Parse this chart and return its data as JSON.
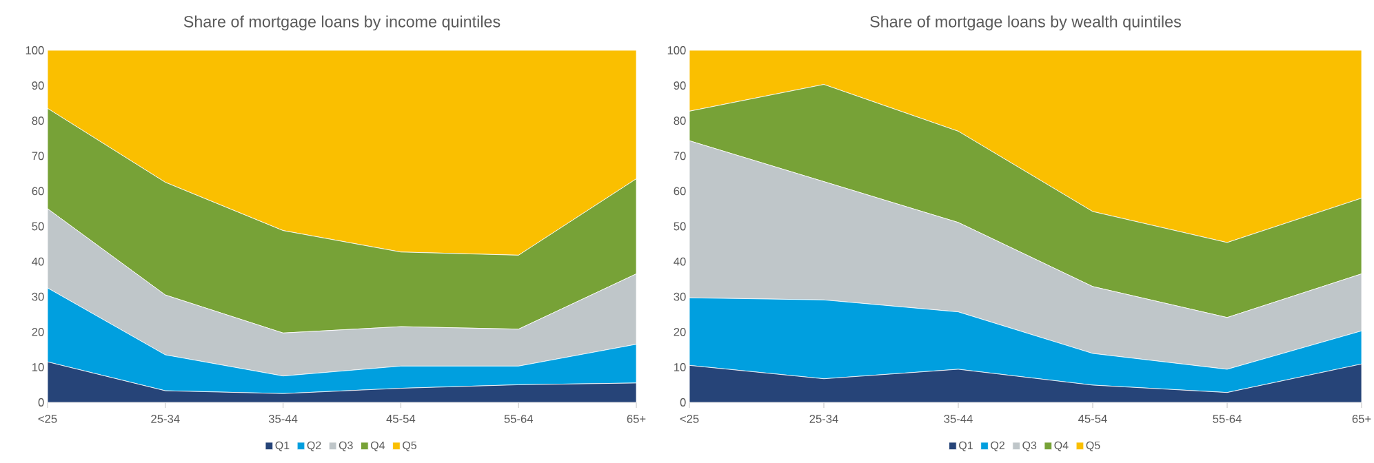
{
  "chart_data": [
    {
      "type": "area",
      "stacked": true,
      "title": "Share of mortgage loans by income quintiles",
      "categories": [
        "<25",
        "25-34",
        "35-44",
        "45-54",
        "55-64",
        "65+"
      ],
      "ylim": [
        0,
        100
      ],
      "yticks": [
        0,
        10,
        20,
        30,
        40,
        50,
        60,
        70,
        80,
        90,
        100
      ],
      "grid": false,
      "legend": "bottom",
      "series": [
        {
          "name": "Q1",
          "color": "#264478",
          "values": [
            11.5,
            3.3,
            2.5,
            4,
            5,
            5.5
          ]
        },
        {
          "name": "Q2",
          "color": "#009fdf",
          "values": [
            21,
            10.2,
            5,
            6.3,
            5.3,
            11
          ]
        },
        {
          "name": "Q3",
          "color": "#bfc6c9",
          "values": [
            22.5,
            17,
            12.2,
            11.2,
            10.5,
            20
          ]
        },
        {
          "name": "Q4",
          "color": "#77a237",
          "values": [
            28.5,
            32,
            29.1,
            21.2,
            21,
            27
          ]
        },
        {
          "name": "Q5",
          "color": "#fabf00",
          "values": [
            16.5,
            37.5,
            51.2,
            57.3,
            58.2,
            36.5
          ]
        }
      ]
    },
    {
      "type": "area",
      "stacked": true,
      "title": "Share of mortgage loans by wealth quintiles",
      "categories": [
        "<25",
        "25-34",
        "35-44",
        "45-54",
        "55-64",
        "65+"
      ],
      "ylim": [
        0,
        100
      ],
      "yticks": [
        0,
        10,
        20,
        30,
        40,
        50,
        60,
        70,
        80,
        90,
        100
      ],
      "grid": false,
      "legend": "bottom",
      "series": [
        {
          "name": "Q1",
          "color": "#264478",
          "values": [
            10.5,
            6.7,
            9.4,
            4.9,
            2.8,
            10.9
          ]
        },
        {
          "name": "Q2",
          "color": "#009fdf",
          "values": [
            19.2,
            22.4,
            16.3,
            9,
            6.6,
            9.4
          ]
        },
        {
          "name": "Q3",
          "color": "#bfc6c9",
          "values": [
            44.6,
            33.6,
            25.4,
            19,
            14.7,
            16.2
          ]
        },
        {
          "name": "Q4",
          "color": "#77a237",
          "values": [
            8.4,
            27.6,
            25.9,
            21.3,
            21.3,
            21.5
          ]
        },
        {
          "name": "Q5",
          "color": "#fabf00",
          "values": [
            17.3,
            9.7,
            23,
            45.8,
            54.6,
            42
          ]
        }
      ]
    }
  ]
}
